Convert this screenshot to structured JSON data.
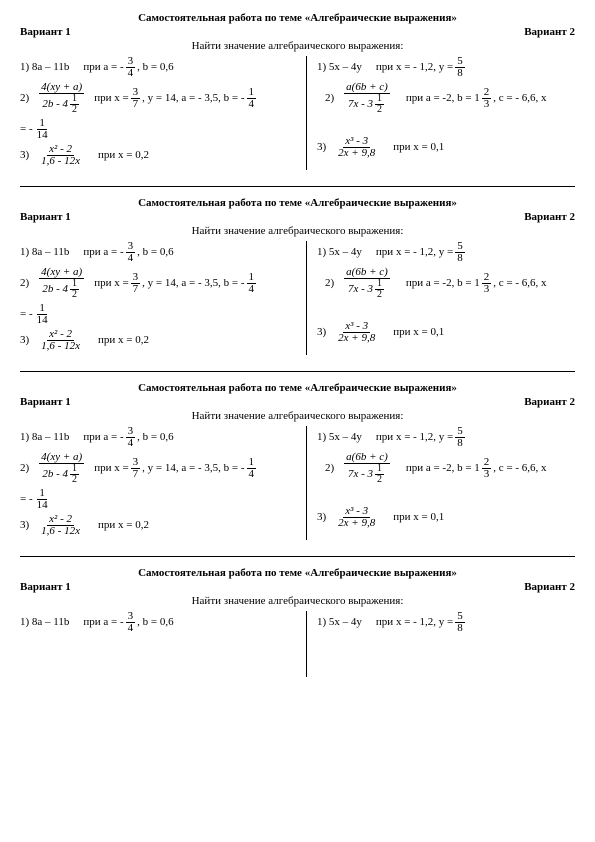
{
  "title": "Самостоятельная работа по теме «Алгебраические выражения»",
  "subtitle": "Найти значение алгебраического выражения:",
  "variant1": "Вариант 1",
  "variant2": "Вариант 2",
  "left": {
    "p1_pre": "1) 8a – 11b",
    "p1_cond_a": "при a = -",
    "p1_frac_n": "3",
    "p1_frac_d": "4",
    "p1_cond_b": ",   b = 0,6",
    "p2_num_label": "2)",
    "p2_frac1_n": "4(xy + a)",
    "p2_frac1_d_a": "2b -  4",
    "p2_frac1_d_b_n": "1",
    "p2_frac1_d_b_d": "2",
    "p2_cond_a": "при x =",
    "p2_frac2_n": "3",
    "p2_frac2_d": "7",
    "p2_cond_b": ",  y = 14,  a = - 3,5,   b = -",
    "p2_frac3_n": "1",
    "p2_frac3_d": "4",
    "p2_tail": "= -",
    "p2_tail_n": "1",
    "p2_tail_d": "14",
    "p3_label": "3)",
    "p3_frac_n": "x²  -  2",
    "p3_frac_d": "1,6 -  12x",
    "p3_cond": "при x = 0,2"
  },
  "right": {
    "p1_pre": "1) 5x – 4y",
    "p1_cond_a": "при x = - 1,2,  y =",
    "p1_frac_n": "5",
    "p1_frac_d": "8",
    "p2_label": "2)",
    "p2_frac1_n": "a(6b + c)",
    "p2_frac1_d_a": "7x -  3",
    "p2_frac1_d_b_n": "1",
    "p2_frac1_d_b_d": "2",
    "p2_cond_a": "при a = -2,  b = 1",
    "p2_frac2_n": "2",
    "p2_frac2_d": "3",
    "p2_cond_b": ",  c = - 6,6, x",
    "p3_label": "3)",
    "p3_frac_n": "x³  -  3",
    "p3_frac_d": "2x + 9,8",
    "p3_cond": "при x = 0,1"
  }
}
